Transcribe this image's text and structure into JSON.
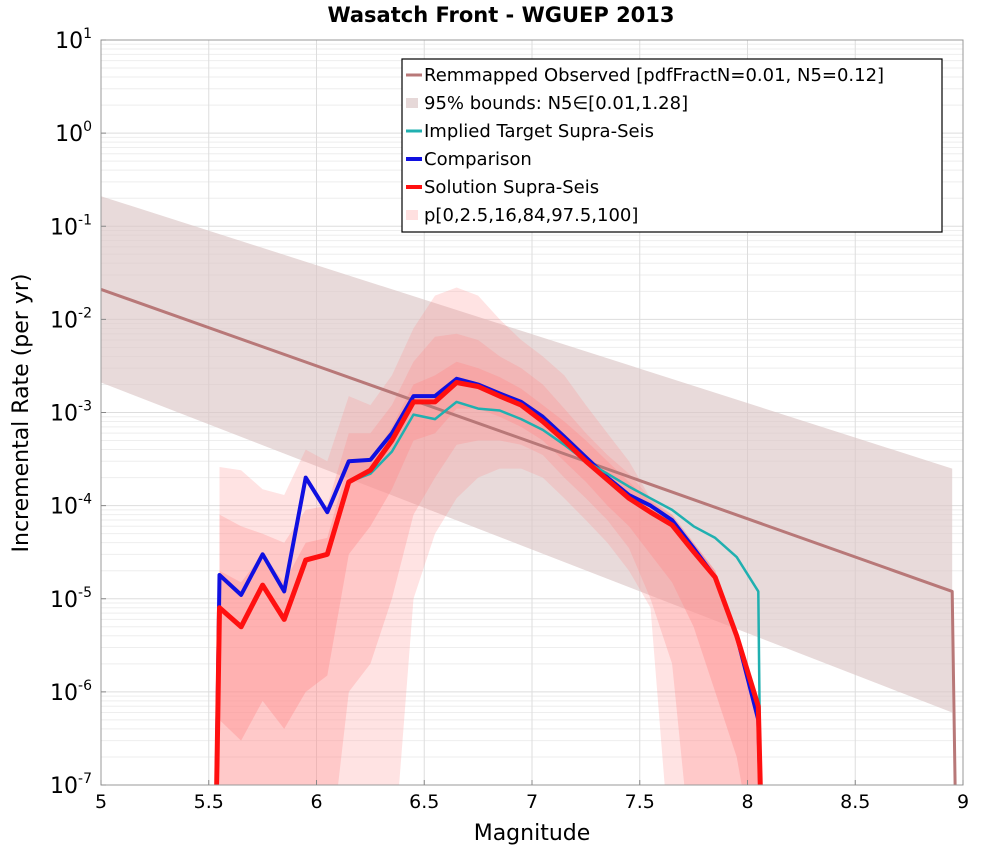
{
  "chart_data": {
    "type": "line",
    "title": "Wasatch Front - WGUEP 2013",
    "xlabel": "Magnitude",
    "ylabel": "Incremental Rate (per yr)",
    "xlim": [
      5,
      9
    ],
    "ylim": [
      1e-07,
      10
    ],
    "yscale": "log",
    "grid": true,
    "legend_position": "top-right",
    "x_ticks": [
      "5",
      "5.5",
      "6",
      "6.5",
      "7",
      "7.5",
      "8",
      "8.5",
      "9"
    ],
    "y_ticks": [
      {
        "base": "10",
        "exp": "-7"
      },
      {
        "base": "10",
        "exp": "-6"
      },
      {
        "base": "10",
        "exp": "-5"
      },
      {
        "base": "10",
        "exp": "-4"
      },
      {
        "base": "10",
        "exp": "-3"
      },
      {
        "base": "10",
        "exp": "-2"
      },
      {
        "base": "10",
        "exp": "-1"
      },
      {
        "base": "10",
        "exp": "0"
      },
      {
        "base": "10",
        "exp": "1"
      }
    ],
    "legend": [
      {
        "label": "Remmapped Observed [pdfFractN=0.01, N5=0.12]",
        "kind": "line",
        "color": "#b87878"
      },
      {
        "label": "95% bounds: N5∈[0.01,1.28]",
        "kind": "patch",
        "color": "#e6d8d8"
      },
      {
        "label": "Implied Target Supra-Seis",
        "kind": "line",
        "color": "#20b0b0"
      },
      {
        "label": "Comparison",
        "kind": "line",
        "color": "#1010e0"
      },
      {
        "label": "Solution Supra-Seis",
        "kind": "line",
        "color": "#ff1010"
      },
      {
        "label": "p[0,2.5,16,84,97.5,100]",
        "kind": "patch",
        "color": "#ffe0e0"
      }
    ],
    "series": [
      {
        "name": "Remmapped Observed [pdfFractN=0.01, N5=0.12]",
        "color": "#b87878",
        "x": [
          5.0,
          8.95,
          8.97
        ],
        "y": [
          0.021,
          1.2e-05,
          1e-08
        ]
      },
      {
        "name": "95% bounds: N5∈[0.01,1.28]",
        "color": "#e6d8d8",
        "band": true,
        "x": [
          5.0,
          8.95
        ],
        "lower": [
          0.0021,
          6e-07
        ],
        "upper": [
          0.21,
          0.00025
        ]
      },
      {
        "name": "Implied Target Supra-Seis",
        "color": "#20b0b0",
        "x": [
          6.15,
          6.25,
          6.35,
          6.45,
          6.55,
          6.65,
          6.75,
          6.85,
          6.95,
          7.05,
          7.15,
          7.25,
          7.35,
          7.45,
          7.55,
          7.65,
          7.75,
          7.85,
          7.95,
          8.05,
          8.06
        ],
        "y": [
          0.00018,
          0.00022,
          0.00038,
          0.00095,
          0.00085,
          0.0013,
          0.0011,
          0.00105,
          0.00085,
          0.00065,
          0.00045,
          0.0003,
          0.00022,
          0.00016,
          0.00012,
          9e-05,
          6e-05,
          4.5e-05,
          2.8e-05,
          1.2e-05,
          1e-07
        ]
      },
      {
        "name": "Comparison",
        "color": "#1010e0",
        "x": [
          5.53,
          5.55,
          5.65,
          5.75,
          5.85,
          5.95,
          6.05,
          6.15,
          6.25,
          6.35,
          6.45,
          6.55,
          6.65,
          6.75,
          6.85,
          6.95,
          7.05,
          7.15,
          7.25,
          7.35,
          7.45,
          7.55,
          7.65,
          7.75,
          7.85,
          7.95,
          8.05,
          8.07
        ],
        "y": [
          1e-08,
          1.8e-05,
          1.1e-05,
          3e-05,
          1.2e-05,
          0.0002,
          8.5e-05,
          0.0003,
          0.00031,
          0.0006,
          0.0015,
          0.0015,
          0.0023,
          0.002,
          0.0016,
          0.0013,
          0.0009,
          0.00055,
          0.00033,
          0.0002,
          0.00013,
          0.0001,
          7e-05,
          3.5e-05,
          1.7e-05,
          4e-06,
          5e-07,
          1e-08
        ]
      },
      {
        "name": "Solution Supra-Seis",
        "color": "#ff1010",
        "x": [
          5.53,
          5.55,
          5.65,
          5.75,
          5.85,
          5.95,
          6.05,
          6.15,
          6.25,
          6.35,
          6.45,
          6.55,
          6.65,
          6.75,
          6.85,
          6.95,
          7.05,
          7.15,
          7.25,
          7.35,
          7.45,
          7.55,
          7.65,
          7.75,
          7.85,
          7.95,
          8.05,
          8.07
        ],
        "y": [
          1e-08,
          8e-06,
          5e-06,
          1.4e-05,
          6e-06,
          2.6e-05,
          3e-05,
          0.00018,
          0.00024,
          0.0005,
          0.0013,
          0.0013,
          0.0021,
          0.0019,
          0.0015,
          0.0012,
          0.0008,
          0.0005,
          0.0003,
          0.00019,
          0.00012,
          8.5e-05,
          6.2e-05,
          3.2e-05,
          1.7e-05,
          4e-06,
          7e-07,
          1e-08
        ]
      },
      {
        "name": "p[0,2.5,16,84,97.5,100]",
        "color": "#ffe0e0",
        "bands": [
          {
            "opacity": 0.45,
            "x": [
              5.55,
              5.65,
              5.75,
              5.85,
              5.95,
              6.05,
              6.15,
              6.25,
              6.35,
              6.45,
              6.55,
              6.65,
              6.75,
              6.85,
              6.95,
              7.05,
              7.15,
              7.25,
              7.35,
              7.45,
              7.55,
              7.65,
              7.75,
              7.85,
              7.95,
              8.05
            ],
            "lower": [
              1e-08,
              1e-08,
              1e-08,
              1e-08,
              1e-08,
              1e-08,
              1e-08,
              1e-08,
              1e-08,
              1e-05,
              5e-05,
              0.00012,
              0.0002,
              0.00025,
              0.00025,
              0.0002,
              0.00012,
              7e-05,
              4e-05,
              2e-05,
              8e-06,
              1e-08,
              1e-08,
              1e-08,
              1e-08,
              1e-08
            ],
            "upper": [
              0.00026,
              0.00024,
              0.00015,
              0.00013,
              0.0004,
              0.0003,
              0.0015,
              0.0012,
              0.0025,
              0.008,
              0.018,
              0.022,
              0.018,
              0.01,
              0.006,
              0.004,
              0.0025,
              0.0012,
              0.0006,
              0.0003,
              0.00012,
              7e-05,
              4e-05,
              2e-05,
              4e-06,
              7e-07
            ]
          },
          {
            "opacity": 0.55,
            "x": [
              5.55,
              5.65,
              5.75,
              5.85,
              5.95,
              6.05,
              6.15,
              6.25,
              6.35,
              6.45,
              6.55,
              6.65,
              6.75,
              6.85,
              6.95,
              7.05,
              7.15,
              7.25,
              7.35,
              7.45,
              7.55,
              7.65,
              7.75,
              7.85,
              7.95,
              8.05
            ],
            "lower": [
              1e-08,
              1e-08,
              1e-08,
              1e-08,
              1e-08,
              1e-08,
              1e-06,
              2e-06,
              1e-05,
              8e-05,
              0.0002,
              0.00045,
              0.0005,
              0.0005,
              0.00045,
              0.00035,
              0.0002,
              0.00012,
              7e-05,
              3.5e-05,
              1e-05,
              2e-06,
              1e-08,
              1e-08,
              1e-08,
              1e-08
            ],
            "upper": [
              8e-05,
              6e-05,
              5e-05,
              4e-05,
              9e-05,
              0.0001,
              0.0006,
              0.0006,
              0.0012,
              0.0035,
              0.0065,
              0.007,
              0.006,
              0.004,
              0.003,
              0.002,
              0.0011,
              0.0006,
              0.00035,
              0.00022,
              0.00012,
              8e-05,
              4e-05,
              2e-05,
              4e-06,
              7e-07
            ]
          },
          {
            "opacity": 0.75,
            "x": [
              5.55,
              5.65,
              5.75,
              5.85,
              5.95,
              6.05,
              6.15,
              6.25,
              6.35,
              6.45,
              6.55,
              6.65,
              6.75,
              6.85,
              6.95,
              7.05,
              7.15,
              7.25,
              7.35,
              7.45,
              7.55,
              7.65,
              7.75,
              7.85,
              7.95,
              8.05
            ],
            "lower": [
              5e-07,
              3e-07,
              8e-07,
              4e-07,
              1e-06,
              1.5e-06,
              3e-05,
              6e-05,
              0.00015,
              0.0005,
              0.0006,
              0.0011,
              0.0011,
              0.0009,
              0.0007,
              0.0005,
              0.0003,
              0.00018,
              0.0001,
              6e-05,
              3e-05,
              1.5e-05,
              5e-06,
              1e-06,
              2e-07,
              1e-08
            ],
            "upper": [
              2e-05,
              1.5e-05,
              3e-05,
              1.5e-05,
              4e-05,
              4.5e-05,
              0.0003,
              0.0003,
              0.0007,
              0.002,
              0.0025,
              0.0035,
              0.003,
              0.0024,
              0.0018,
              0.0012,
              0.0008,
              0.0005,
              0.0003,
              0.00018,
              0.00011,
              8e-05,
              4e-05,
              2e-05,
              4e-06,
              7e-07
            ]
          }
        ]
      }
    ]
  }
}
